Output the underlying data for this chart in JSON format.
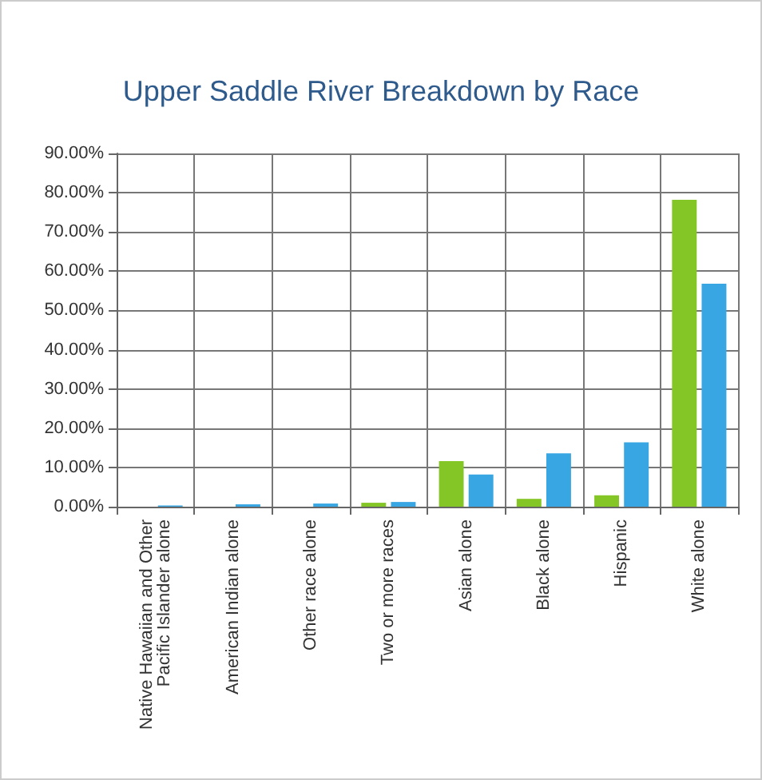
{
  "chart_data": {
    "type": "bar",
    "title": "Upper Saddle River Breakdown by Race",
    "categories": [
      "Native Hawaiian and Other\nPacific Islander alone",
      "American Indian alone",
      "Other race alone",
      "Two or more races",
      "Asian alone",
      "Black alone",
      "Hispanic",
      "White alone"
    ],
    "series": [
      {
        "color": "#84c625",
        "values": [
          0,
          0,
          0,
          1.0,
          11.6,
          2.0,
          2.9,
          78.2
        ]
      },
      {
        "color": "#38a6e2",
        "values": [
          0.3,
          0.6,
          0.8,
          1.2,
          8.2,
          13.6,
          16.4,
          56.8
        ]
      }
    ],
    "ylim": [
      0,
      90
    ],
    "yticks": [
      {
        "value": 0,
        "label": "0.00%"
      },
      {
        "value": 10,
        "label": "10.00%"
      },
      {
        "value": 20,
        "label": "20.00%"
      },
      {
        "value": 30,
        "label": "30.00%"
      },
      {
        "value": 40,
        "label": "40.00%"
      },
      {
        "value": 50,
        "label": "50.00%"
      },
      {
        "value": 60,
        "label": "60.00%"
      },
      {
        "value": 70,
        "label": "70.00%"
      },
      {
        "value": 80,
        "label": "80.00%"
      },
      {
        "value": 90,
        "label": "90.00%"
      }
    ],
    "grid": true
  }
}
